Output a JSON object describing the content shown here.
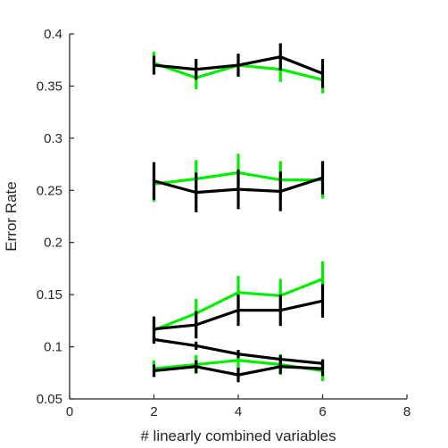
{
  "chart_data": {
    "type": "line",
    "xlabel": "# linearly combined variables",
    "ylabel": "Error Rate",
    "xlim": [
      0,
      8
    ],
    "ylim": [
      0.05,
      0.4
    ],
    "xticks": [
      0,
      2,
      4,
      6,
      8
    ],
    "yticks": [
      0.05,
      0.1,
      0.15,
      0.2,
      0.25,
      0.3,
      0.35,
      0.4
    ],
    "xtick_labels": [
      "0",
      "2",
      "4",
      "6",
      "8"
    ],
    "ytick_labels": [
      "0.05",
      "0.1",
      "0.15",
      "0.2",
      "0.25",
      "0.3",
      "0.35",
      "0.4"
    ],
    "grid": false,
    "legend": "none",
    "x": [
      2,
      3,
      4,
      5,
      6
    ],
    "series": [
      {
        "color": "#00ee00",
        "values": [
          0.372,
          0.358,
          0.37,
          0.366,
          0.356
        ],
        "errors": [
          0.011,
          0.011,
          0.011,
          0.012,
          0.013
        ]
      },
      {
        "color": "#000000",
        "values": [
          0.37,
          0.366,
          0.37,
          0.378,
          0.362
        ],
        "errors": [
          0.009,
          0.01,
          0.011,
          0.013,
          0.014
        ]
      },
      {
        "color": "#00ee00",
        "values": [
          0.256,
          0.261,
          0.267,
          0.26,
          0.26
        ],
        "errors": [
          0.017,
          0.018,
          0.018,
          0.018,
          0.018
        ]
      },
      {
        "color": "#000000",
        "values": [
          0.259,
          0.248,
          0.251,
          0.249,
          0.262
        ],
        "errors": [
          0.018,
          0.019,
          0.019,
          0.019,
          0.016
        ]
      },
      {
        "color": "#00ee00",
        "values": [
          0.116,
          0.132,
          0.152,
          0.149,
          0.165
        ],
        "errors": [
          0.01,
          0.014,
          0.016,
          0.016,
          0.017
        ]
      },
      {
        "color": "#000000",
        "values": [
          0.117,
          0.121,
          0.135,
          0.135,
          0.144
        ],
        "errors": [
          0.012,
          0.013,
          0.015,
          0.015,
          0.016
        ]
      },
      {
        "color": "#00ee00",
        "values": [
          0.079,
          0.083,
          0.087,
          0.083,
          0.077
        ],
        "errors": [
          0.008,
          0.009,
          0.01,
          0.01,
          0.01
        ]
      },
      {
        "color": "#000000",
        "values": [
          0.107,
          0.101,
          0.093,
          0.088,
          0.084
        ],
        "errors": [
          0.004,
          0.004,
          0.004,
          0.004,
          0.004
        ]
      },
      {
        "color": "#000000",
        "values": [
          0.077,
          0.081,
          0.073,
          0.081,
          0.079
        ],
        "errors": [
          0.006,
          0.006,
          0.007,
          0.007,
          0.007
        ]
      }
    ]
  }
}
